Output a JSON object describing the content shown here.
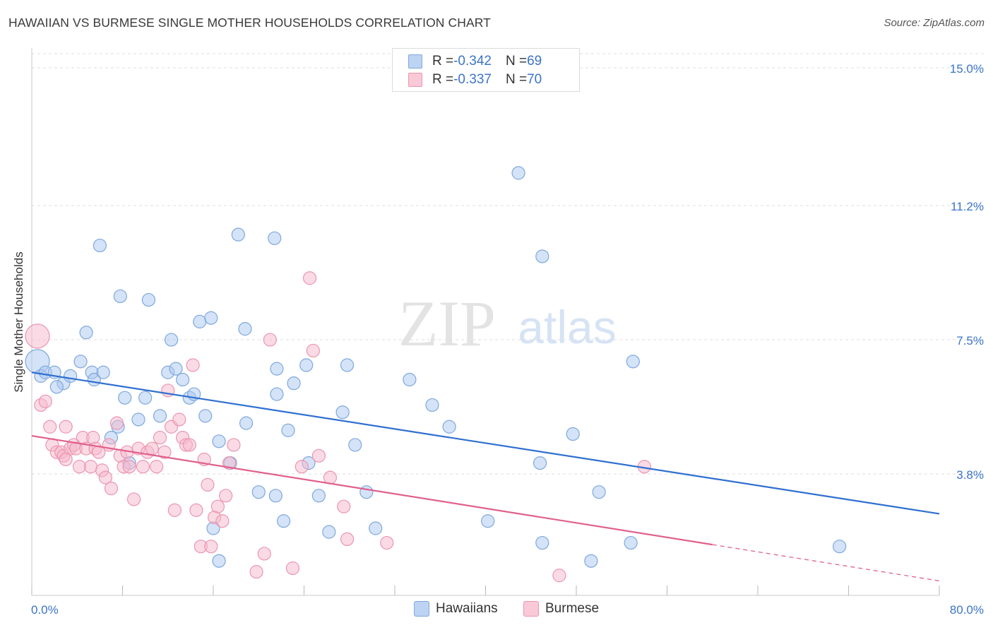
{
  "title": "HAWAIIAN VS BURMESE SINGLE MOTHER HOUSEHOLDS CORRELATION CHART",
  "source": "Source: ZipAtlas.com",
  "watermark": {
    "zip": "ZIP",
    "atlas": "atlas"
  },
  "legend_top": {
    "rows": [
      {
        "r_label": "R = ",
        "r_value": "-0.342",
        "n_label": "N = ",
        "n_value": "69"
      },
      {
        "r_label": "R = ",
        "r_value": "-0.337",
        "n_label": "N = ",
        "n_value": "70"
      }
    ]
  },
  "legend_bottom": {
    "items": [
      "Hawaiians",
      "Burmese"
    ]
  },
  "colors": {
    "hawaiians_fill": "#a9c8f0",
    "hawaiians_stroke": "#7ea8de",
    "hawaiians_line": "#2f6fd0",
    "burmese_fill": "#f6b8cc",
    "burmese_stroke": "#ec95b0",
    "burmese_line": "#e0608c",
    "tick_label": "#3b74c9",
    "grid": "#dcdcdc"
  },
  "chart_data": {
    "type": "scatter",
    "title": "HAWAIIAN VS BURMESE SINGLE MOTHER HOUSEHOLDS CORRELATION CHART",
    "xlabel": "",
    "ylabel": "Single Mother Households",
    "xlim": [
      0,
      80
    ],
    "ylim": [
      0,
      15.5
    ],
    "x_tick_labels": [
      "0.0%",
      "80.0%"
    ],
    "y_ticks": [
      3.8,
      7.5,
      11.2,
      15.0
    ],
    "y_tick_labels": [
      "3.8%",
      "7.5%",
      "11.2%",
      "15.0%"
    ],
    "grid": "horizontal dashed",
    "legend_position": "top-center",
    "series": [
      {
        "name": "Hawaiians",
        "r": -0.342,
        "n": 69,
        "trend": {
          "x": [
            0,
            80
          ],
          "y": [
            6.6,
            2.7
          ]
        },
        "points": [
          [
            0.5,
            6.9
          ],
          [
            0.8,
            6.5
          ],
          [
            1.2,
            6.6
          ],
          [
            2.0,
            6.6
          ],
          [
            2.8,
            6.3
          ],
          [
            2.2,
            6.2
          ],
          [
            3.4,
            6.5
          ],
          [
            4.3,
            6.9
          ],
          [
            5.3,
            6.6
          ],
          [
            4.8,
            7.7
          ],
          [
            5.5,
            6.4
          ],
          [
            6.3,
            6.6
          ],
          [
            6.0,
            10.1
          ],
          [
            7.8,
            8.7
          ],
          [
            10.3,
            8.6
          ],
          [
            8.2,
            5.9
          ],
          [
            10.0,
            5.9
          ],
          [
            9.4,
            5.3
          ],
          [
            11.3,
            5.4
          ],
          [
            12.3,
            7.5
          ],
          [
            12.0,
            6.6
          ],
          [
            12.7,
            6.7
          ],
          [
            13.3,
            6.4
          ],
          [
            13.9,
            5.9
          ],
          [
            14.3,
            6.0
          ],
          [
            14.8,
            8.0
          ],
          [
            15.3,
            5.4
          ],
          [
            15.8,
            8.1
          ],
          [
            18.2,
            10.4
          ],
          [
            18.8,
            7.8
          ],
          [
            18.9,
            5.2
          ],
          [
            16.5,
            4.7
          ],
          [
            17.5,
            4.1
          ],
          [
            21.4,
            10.3
          ],
          [
            21.6,
            6.7
          ],
          [
            21.6,
            6.0
          ],
          [
            22.6,
            5.0
          ],
          [
            23.1,
            6.3
          ],
          [
            24.2,
            6.8
          ],
          [
            24.4,
            4.1
          ],
          [
            20.0,
            3.3
          ],
          [
            21.5,
            3.2
          ],
          [
            22.2,
            2.5
          ],
          [
            25.3,
            3.2
          ],
          [
            26.2,
            2.2
          ],
          [
            27.8,
            6.8
          ],
          [
            27.4,
            5.5
          ],
          [
            29.5,
            3.3
          ],
          [
            30.3,
            2.3
          ],
          [
            28.5,
            4.6
          ],
          [
            33.3,
            6.4
          ],
          [
            35.3,
            5.7
          ],
          [
            36.8,
            5.1
          ],
          [
            42.9,
            12.1
          ],
          [
            45.0,
            9.8
          ],
          [
            44.8,
            4.1
          ],
          [
            45.0,
            1.9
          ],
          [
            47.7,
            4.9
          ],
          [
            50.0,
            3.3
          ],
          [
            49.3,
            1.4
          ],
          [
            53.0,
            6.9
          ],
          [
            52.8,
            1.9
          ],
          [
            40.2,
            2.5
          ],
          [
            71.2,
            1.8
          ],
          [
            16.0,
            2.3
          ],
          [
            16.5,
            1.4
          ],
          [
            7.6,
            5.1
          ],
          [
            7.0,
            4.8
          ],
          [
            8.6,
            4.1
          ]
        ]
      },
      {
        "name": "Burmese",
        "r": -0.337,
        "n": 70,
        "trend": {
          "x": [
            0,
            60
          ],
          "y": [
            4.85,
            1.85
          ]
        },
        "trend_dashed_extension": {
          "x": [
            60,
            80
          ],
          "y": [
            1.85,
            0.85
          ]
        },
        "points": [
          [
            0.5,
            7.6
          ],
          [
            0.8,
            5.7
          ],
          [
            1.2,
            5.8
          ],
          [
            1.6,
            5.1
          ],
          [
            1.8,
            4.6
          ],
          [
            2.2,
            4.4
          ],
          [
            2.6,
            4.4
          ],
          [
            2.8,
            4.3
          ],
          [
            3.0,
            5.1
          ],
          [
            3.4,
            4.5
          ],
          [
            3.7,
            4.6
          ],
          [
            3.9,
            4.5
          ],
          [
            4.2,
            4.0
          ],
          [
            4.5,
            4.8
          ],
          [
            4.8,
            4.5
          ],
          [
            5.2,
            4.0
          ],
          [
            5.4,
            4.8
          ],
          [
            5.6,
            4.5
          ],
          [
            5.9,
            4.4
          ],
          [
            6.2,
            3.9
          ],
          [
            6.5,
            3.7
          ],
          [
            6.8,
            4.6
          ],
          [
            7.0,
            3.4
          ],
          [
            7.5,
            5.2
          ],
          [
            7.8,
            4.3
          ],
          [
            8.1,
            4.0
          ],
          [
            8.4,
            4.4
          ],
          [
            8.6,
            4.0
          ],
          [
            9.0,
            3.1
          ],
          [
            9.4,
            4.5
          ],
          [
            9.8,
            4.0
          ],
          [
            10.2,
            4.4
          ],
          [
            10.6,
            4.5
          ],
          [
            11.0,
            4.0
          ],
          [
            11.3,
            4.8
          ],
          [
            11.7,
            4.4
          ],
          [
            12.0,
            6.1
          ],
          [
            12.3,
            5.1
          ],
          [
            12.6,
            2.8
          ],
          [
            13.0,
            5.3
          ],
          [
            13.3,
            4.8
          ],
          [
            13.6,
            4.6
          ],
          [
            13.9,
            4.6
          ],
          [
            14.2,
            6.8
          ],
          [
            14.5,
            2.8
          ],
          [
            14.9,
            1.8
          ],
          [
            15.2,
            4.2
          ],
          [
            15.5,
            3.5
          ],
          [
            15.8,
            1.8
          ],
          [
            16.1,
            2.6
          ],
          [
            16.4,
            2.9
          ],
          [
            16.8,
            2.5
          ],
          [
            17.1,
            3.2
          ],
          [
            17.4,
            4.1
          ],
          [
            17.8,
            4.6
          ],
          [
            19.8,
            1.1
          ],
          [
            20.5,
            1.6
          ],
          [
            21.0,
            7.5
          ],
          [
            23.0,
            1.2
          ],
          [
            23.8,
            4.0
          ],
          [
            24.5,
            9.2
          ],
          [
            24.8,
            7.2
          ],
          [
            25.3,
            4.3
          ],
          [
            26.3,
            3.7
          ],
          [
            27.5,
            2.9
          ],
          [
            27.8,
            2.0
          ],
          [
            31.3,
            1.9
          ],
          [
            46.5,
            1.0
          ],
          [
            54.0,
            4.0
          ],
          [
            3.0,
            4.2
          ]
        ]
      }
    ]
  }
}
